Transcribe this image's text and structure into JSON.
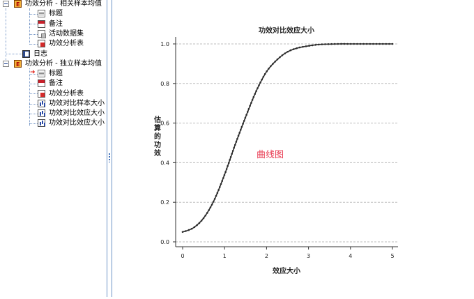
{
  "outline": {
    "items": [
      {
        "label": "功效分析 - 相关样本均值",
        "icon": "book-icon"
      },
      {
        "label": "标题",
        "icon": "title-doc-icon"
      },
      {
        "label": "备注",
        "icon": "notes-icon"
      },
      {
        "label": "活动数据集",
        "icon": "dataset-icon"
      },
      {
        "label": "功效分析表",
        "icon": "table-icon"
      },
      {
        "label": "日志",
        "icon": "log-icon"
      },
      {
        "label": "功效分析 - 独立样本均值",
        "icon": "book-icon"
      },
      {
        "label": "标题",
        "icon": "title-doc-icon"
      },
      {
        "label": "备注",
        "icon": "notes-icon"
      },
      {
        "label": "功效分析表",
        "icon": "table-icon"
      },
      {
        "label": "功效对比样本大小",
        "icon": "chart-icon"
      },
      {
        "label": "功效对比效应大小",
        "icon": "chart-icon"
      },
      {
        "label": "功效对比效应大小",
        "icon": "chart-icon"
      }
    ]
  },
  "chart_data": {
    "type": "line",
    "title": "功效对比效应大小",
    "xlabel": "效应大小",
    "ylabel": "估算的功效",
    "xlim": [
      0,
      5
    ],
    "ylim": [
      0,
      1
    ],
    "x_ticks": [
      "0",
      "1",
      "2",
      "3",
      "4",
      "5"
    ],
    "y_ticks": [
      "0.0",
      "0.2",
      "0.4",
      "0.6",
      "0.8",
      "1.0"
    ],
    "grid": "horizontal dashed",
    "annotation": "曲线图",
    "series": [
      {
        "x": [
          0,
          0.25,
          0.5,
          0.75,
          1.0,
          1.25,
          1.5,
          1.75,
          2.0,
          2.25,
          2.5,
          2.75,
          3.0,
          3.25,
          3.5,
          3.75,
          4.0,
          4.5,
          5.0
        ],
        "y": [
          0.05,
          0.07,
          0.12,
          0.21,
          0.34,
          0.49,
          0.63,
          0.76,
          0.86,
          0.92,
          0.96,
          0.98,
          0.99,
          0.997,
          0.999,
          1.0,
          1.0,
          1.0,
          1.0
        ]
      }
    ],
    "colors": {
      "line": "#2b2b2b",
      "grid": "#bdbdbd",
      "annotation": "#e8384f"
    }
  }
}
